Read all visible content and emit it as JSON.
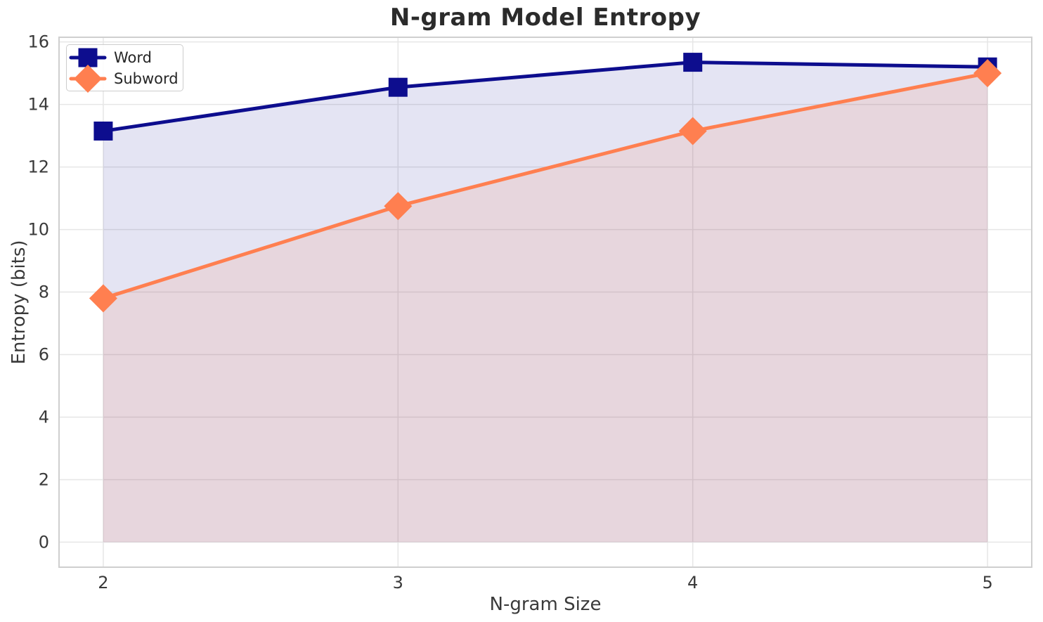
{
  "chart_data": {
    "type": "line",
    "title": "N-gram Model Entropy",
    "xlabel": "N-gram Size",
    "ylabel": "Entropy (bits)",
    "x": [
      2,
      3,
      4,
      5
    ],
    "xtick_labels": [
      "2",
      "3",
      "4",
      "5"
    ],
    "yticks": [
      0,
      2,
      4,
      6,
      8,
      10,
      12,
      14,
      16
    ],
    "xlim": [
      1.85,
      5.15
    ],
    "ylim": [
      -0.8,
      16.15
    ],
    "grid": true,
    "area_fill": true,
    "legend_position": "upper-left",
    "series": [
      {
        "name": "Word",
        "marker": "square",
        "color": "#0D0D8E",
        "fill_opacity": 0.11,
        "values": [
          13.15,
          14.55,
          15.35,
          15.2
        ]
      },
      {
        "name": "Subword",
        "marker": "diamond",
        "color": "#FF7F50",
        "fill_opacity": 0.13,
        "values": [
          7.8,
          10.75,
          13.15,
          15.0
        ]
      }
    ],
    "style": {
      "grid_color": "#e6e6e6",
      "spine_color": "#cfcfcf",
      "tick_text_color": "#3a3a3a",
      "title_color": "#2b2b2b",
      "background": "#ffffff"
    }
  }
}
